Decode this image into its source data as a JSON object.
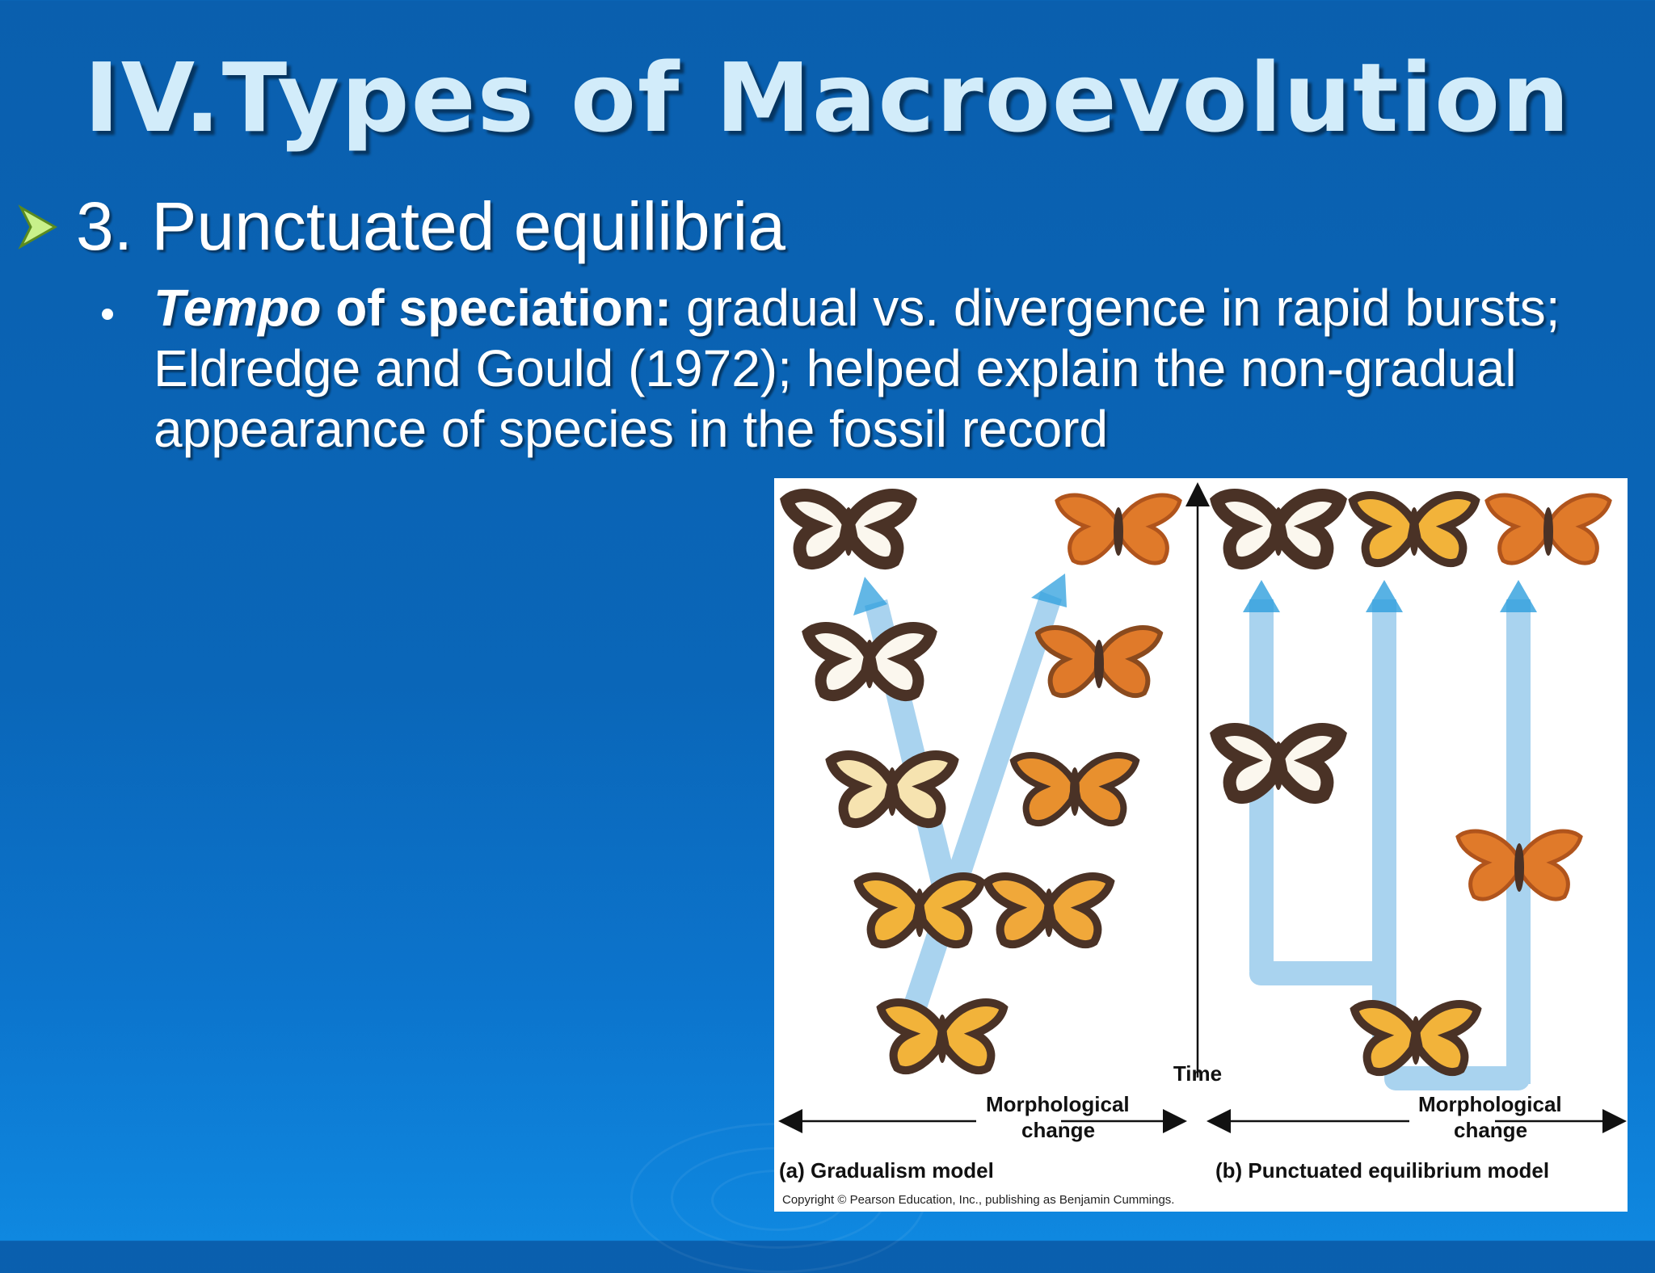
{
  "slide": {
    "title": "IV.Types of Macroevolution",
    "bullet_level1": "3. Punctuated equilibria",
    "bullet_level2": {
      "term_italic": "Tempo",
      "term_rest": " of speciation:",
      "body": "  gradual vs. divergence in rapid bursts; Eldredge and Gould (1972); helped explain the non-gradual appearance of species in the fossil record"
    }
  },
  "figure": {
    "time_label": "Time",
    "morph_label_left_line1": "Morphological",
    "morph_label_left_line2": "change",
    "morph_label_right_line1": "Morphological",
    "morph_label_right_line2": "change",
    "caption_a": "(a) Gradualism model",
    "caption_b": "(b) Punctuated equilibrium model",
    "copyright": "Copyright © Pearson Education, Inc., publishing as Benjamin Cummings.",
    "colors": {
      "branch": "#a9d3ef",
      "arrow_tip": "#2e9fdd",
      "wing_brown": "#4a3226",
      "wing_white": "#fbf7ee",
      "wing_orange": "#e07a2a",
      "wing_yellow": "#f2b33a"
    }
  }
}
